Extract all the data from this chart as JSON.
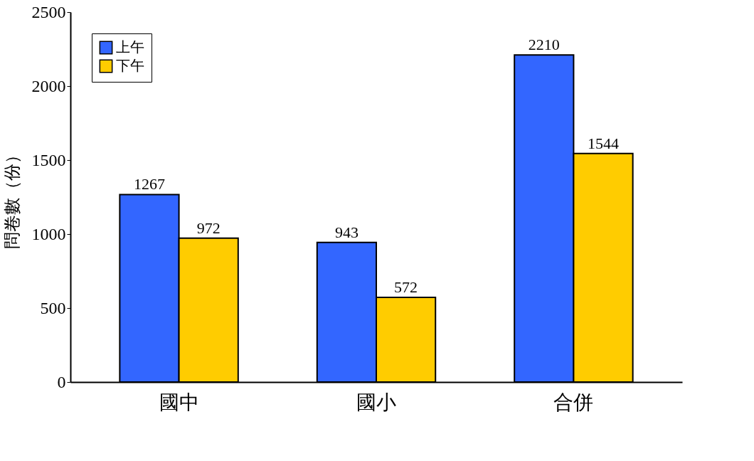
{
  "chart_data": {
    "type": "bar",
    "ylabel": "問卷數（份）",
    "categories": [
      "國中",
      "國小",
      "合併"
    ],
    "series": [
      {
        "name": "上午",
        "color": "#3366ff",
        "values": [
          1267,
          943,
          2210
        ]
      },
      {
        "name": "下午",
        "color": "#ffcc00",
        "values": [
          972,
          572,
          1544
        ]
      }
    ],
    "ylim": [
      0,
      2500
    ],
    "yticks": [
      0,
      500,
      1000,
      1500,
      2000,
      2500
    ],
    "grid": false,
    "legend": "top left",
    "data_labels": true
  }
}
